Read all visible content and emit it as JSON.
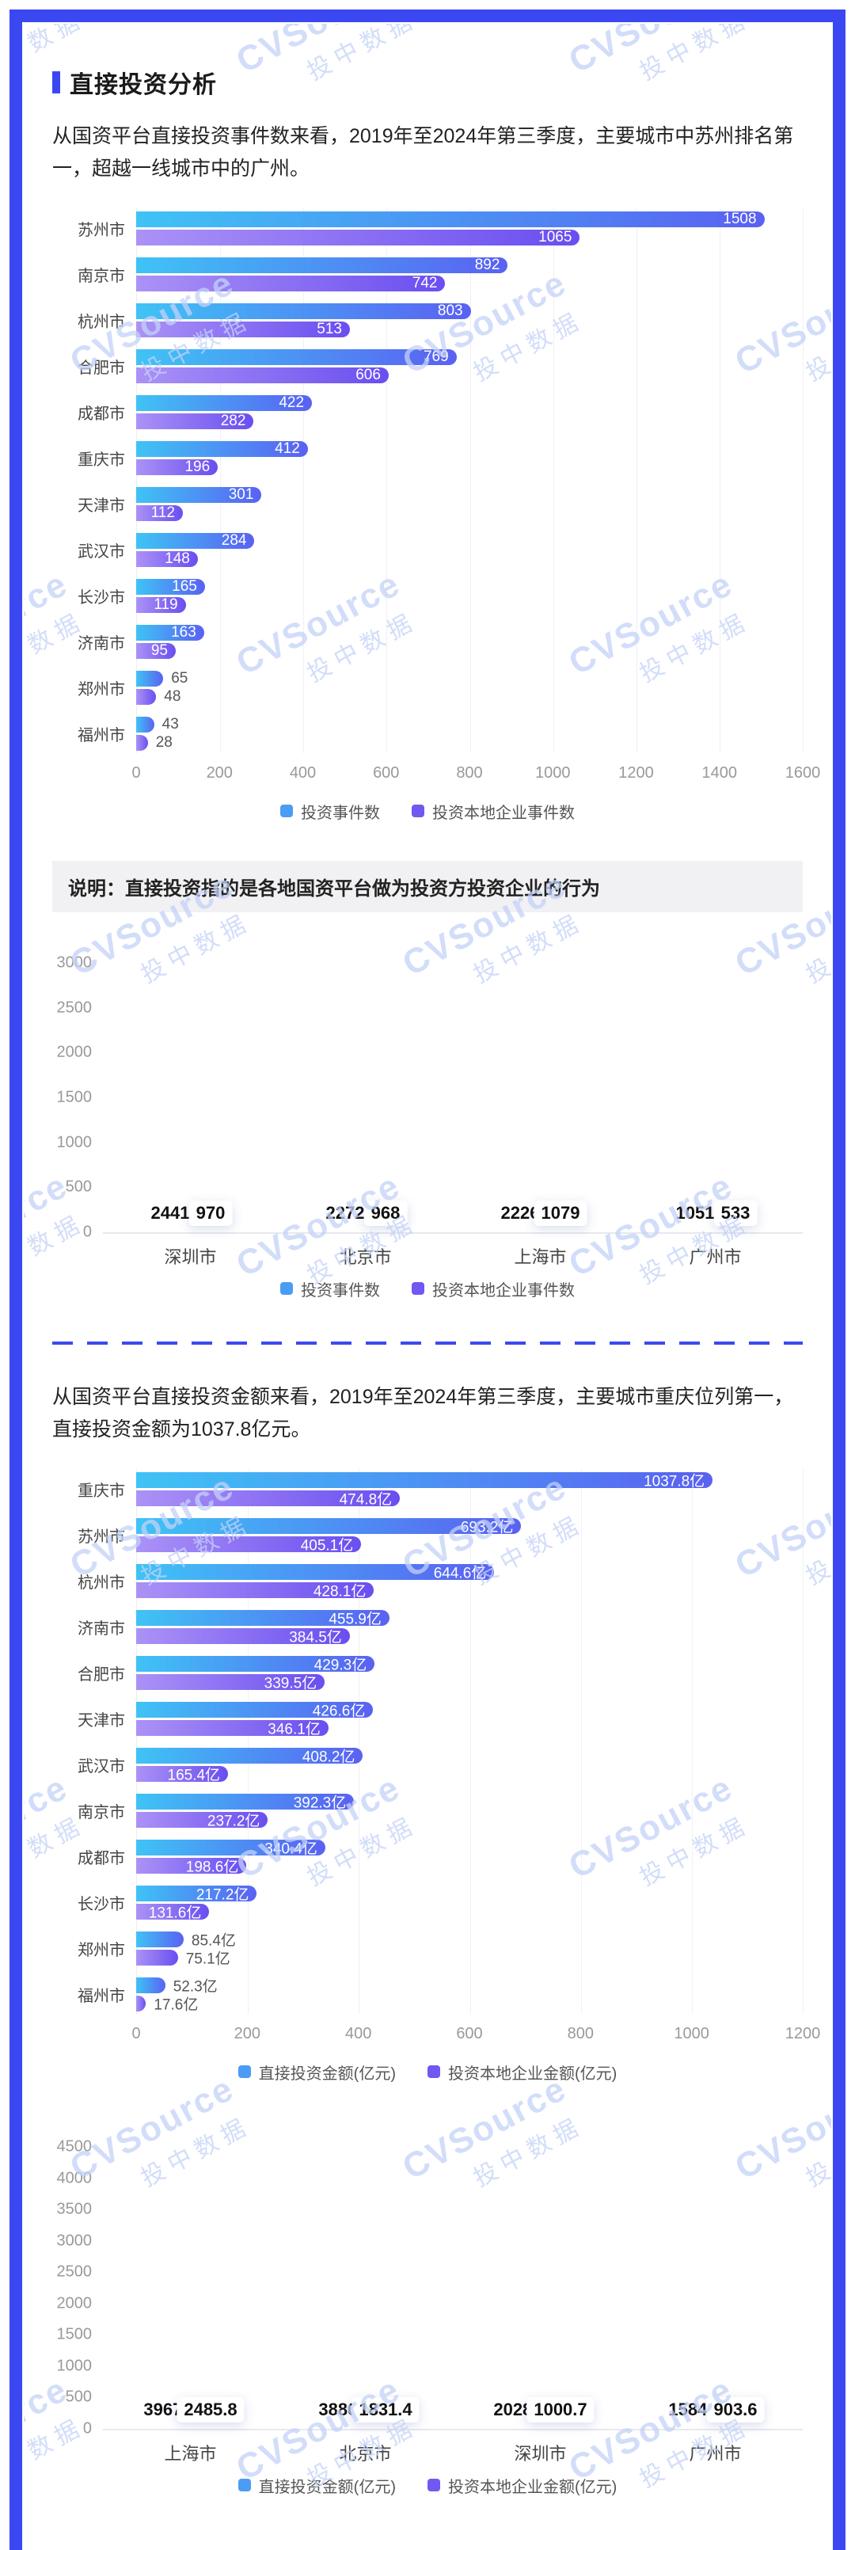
{
  "page": {
    "watermark": {
      "line1": "CVSource",
      "line2": "投中数据"
    }
  },
  "colors": {
    "accent": "#3b48f2",
    "series_blue_from": "#3fc3f5",
    "series_blue_to": "#5a61f2",
    "series_blue_legend": "#4b9cf4",
    "series_purple_from": "#ab92f6",
    "series_purple_to": "#6a4ef0",
    "series_purple_legend": "#6f59f1",
    "watermark": "#c3d2f8"
  },
  "section": {
    "title": "直接投资分析",
    "intro1": "从国资平台直接投资事件数来看，2019年至2024年第三季度，主要城市中苏州排名第一，超越一线城市中的广州。",
    "note": "说明：直接投资指的是各地国资平台做为投资方投资企业的行为",
    "intro2": "从国资平台直接投资金额来看，2019年至2024年第三季度，主要城市重庆位列第一，直接投资金额为1037.8亿元。"
  },
  "chart_data": [
    {
      "type": "bar",
      "orientation": "horizontal",
      "title": "",
      "legend_position": "bottom",
      "categories": [
        "苏州市",
        "南京市",
        "杭州市",
        "合肥市",
        "成都市",
        "重庆市",
        "天津市",
        "武汉市",
        "长沙市",
        "济南市",
        "郑州市",
        "福州市"
      ],
      "series": [
        {
          "name": "投资事件数",
          "values": [
            1508,
            892,
            803,
            769,
            422,
            412,
            301,
            284,
            165,
            163,
            65,
            43
          ],
          "labels": [
            "1508",
            "892",
            "803",
            "769",
            "422",
            "412",
            "301",
            "284",
            "165",
            "163",
            "65",
            "43"
          ]
        },
        {
          "name": "投资本地企业事件数",
          "values": [
            1065,
            742,
            513,
            606,
            282,
            196,
            112,
            148,
            119,
            95,
            48,
            28
          ],
          "labels": [
            "1065",
            "742",
            "513",
            "606",
            "282",
            "196",
            "112",
            "148",
            "119",
            "95",
            "48",
            "28"
          ]
        }
      ],
      "xlim": [
        0,
        1600
      ],
      "xticks": [
        0,
        200,
        400,
        600,
        800,
        1000,
        1200,
        1400,
        1600
      ]
    },
    {
      "type": "bar",
      "orientation": "vertical",
      "title": "",
      "legend_position": "bottom",
      "categories": [
        "深圳市",
        "北京市",
        "上海市",
        "广州市"
      ],
      "series": [
        {
          "name": "投资事件数",
          "values": [
            2441,
            2272,
            2226,
            1051
          ],
          "labels": [
            "2441",
            "2272",
            "2226",
            "1051"
          ]
        },
        {
          "name": "投资本地企业事件数",
          "values": [
            970,
            968,
            1079,
            533
          ],
          "labels": [
            "970",
            "968",
            "1079",
            "533"
          ]
        }
      ],
      "ylim": [
        0,
        3000
      ],
      "yticks": [
        0,
        500,
        1000,
        1500,
        2000,
        2500,
        3000
      ]
    },
    {
      "type": "bar",
      "orientation": "horizontal",
      "title": "",
      "legend_position": "bottom",
      "categories": [
        "重庆市",
        "苏州市",
        "杭州市",
        "济南市",
        "合肥市",
        "天津市",
        "武汉市",
        "南京市",
        "成都市",
        "长沙市",
        "郑州市",
        "福州市"
      ],
      "series": [
        {
          "name": "直接投资金额(亿元)",
          "values": [
            1037.8,
            693.2,
            644.6,
            455.9,
            429.3,
            426.6,
            408.2,
            392.3,
            340.4,
            217.2,
            85.4,
            52.3
          ],
          "labels": [
            "1037.8亿",
            "693.2亿",
            "644.6亿",
            "455.9亿",
            "429.3亿",
            "426.6亿",
            "408.2亿",
            "392.3亿",
            "340.4亿",
            "217.2亿",
            "85.4亿",
            "52.3亿"
          ]
        },
        {
          "name": "投资本地企业金额(亿元)",
          "values": [
            474.8,
            405.1,
            428.1,
            384.5,
            339.5,
            346.1,
            165.4,
            237.2,
            198.6,
            131.6,
            75.1,
            17.6
          ],
          "labels": [
            "474.8亿",
            "405.1亿",
            "428.1亿",
            "384.5亿",
            "339.5亿",
            "346.1亿",
            "165.4亿",
            "237.2亿",
            "198.6亿",
            "131.6亿",
            "75.1亿",
            "17.6亿"
          ]
        }
      ],
      "xlim": [
        0,
        1200
      ],
      "xticks": [
        0,
        200,
        400,
        600,
        800,
        1000,
        1200
      ]
    },
    {
      "type": "bar",
      "orientation": "vertical",
      "title": "",
      "legend_position": "bottom",
      "categories": [
        "上海市",
        "北京市",
        "深圳市",
        "广州市"
      ],
      "series": [
        {
          "name": "直接投资金额(亿元)",
          "values": [
            3967.1,
            3880.0,
            2028.1,
            1584.3
          ],
          "labels": [
            "3967.1",
            "3880.0",
            "2028.1",
            "1584.3"
          ]
        },
        {
          "name": "投资本地企业金额(亿元)",
          "values": [
            2485.8,
            1831.4,
            1000.7,
            903.6
          ],
          "labels": [
            "2485.8",
            "1831.4",
            "1000.7",
            "903.6"
          ]
        }
      ],
      "ylim": [
        0,
        4500
      ],
      "yticks": [
        0,
        500,
        1000,
        1500,
        2000,
        2500,
        3000,
        3500,
        4000,
        4500
      ]
    }
  ]
}
